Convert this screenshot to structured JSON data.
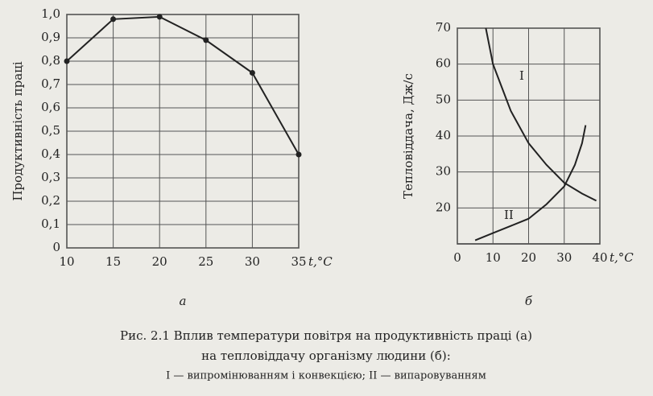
{
  "chart_data": [
    {
      "type": "line",
      "subtitle": "а",
      "xlabel": "t,°C",
      "ylabel": "Продуктивність праці",
      "x": [
        10,
        15,
        20,
        25,
        30,
        35
      ],
      "series": [
        {
          "color": "#222222",
          "values": [
            0.8,
            0.98,
            0.99,
            0.89,
            0.75,
            0.4
          ]
        }
      ],
      "markers": true,
      "grid": true,
      "xlim": [
        10,
        35
      ],
      "xticks": [
        10,
        15,
        20,
        25,
        30,
        35
      ],
      "ylim": [
        0,
        1.0
      ],
      "yticks": [
        0,
        {
          "value": 0.1,
          "label": "0,1"
        },
        {
          "value": 0.2,
          "label": "0,2"
        },
        {
          "value": 0.3,
          "label": "0,3"
        },
        {
          "value": 0.4,
          "label": "0,4"
        },
        {
          "value": 0.5,
          "label": "0,5"
        },
        {
          "value": 0.6,
          "label": "0,6"
        },
        {
          "value": 0.7,
          "label": "0,7"
        },
        {
          "value": 0.8,
          "label": "0,8"
        },
        {
          "value": 0.9,
          "label": "0,9"
        },
        {
          "value": 1.0,
          "label": "1,0"
        }
      ]
    },
    {
      "type": "line",
      "subtitle": "б",
      "xlabel": "t,°C",
      "ylabel": "Тепловіддача, Дж/с",
      "markers": false,
      "grid": true,
      "series": [
        {
          "name": "I",
          "color": "#222222",
          "x": [
            8,
            10,
            15,
            20,
            25,
            30,
            35,
            39
          ],
          "values": [
            70,
            60,
            47,
            38,
            32,
            27,
            24,
            22
          ]
        },
        {
          "name": "II",
          "color": "#222222",
          "x": [
            5,
            10,
            15,
            20,
            25,
            30,
            33,
            35,
            36
          ],
          "values": [
            11,
            13,
            15,
            17,
            21,
            26,
            32,
            38,
            43
          ]
        }
      ],
      "xlim": [
        0,
        40
      ],
      "xticks": [
        0,
        10,
        20,
        30,
        40
      ],
      "ylim": [
        10,
        70
      ],
      "yticks": [
        20,
        30,
        40,
        50,
        60,
        70
      ]
    }
  ],
  "caption": [
    "Рис. 2.1 Вплив температури повітря на продуктивність праці (а)",
    "на тепловіддачу організму людини (б):",
    "I — випромінюванням і конвекцією; II — випаровуванням"
  ]
}
